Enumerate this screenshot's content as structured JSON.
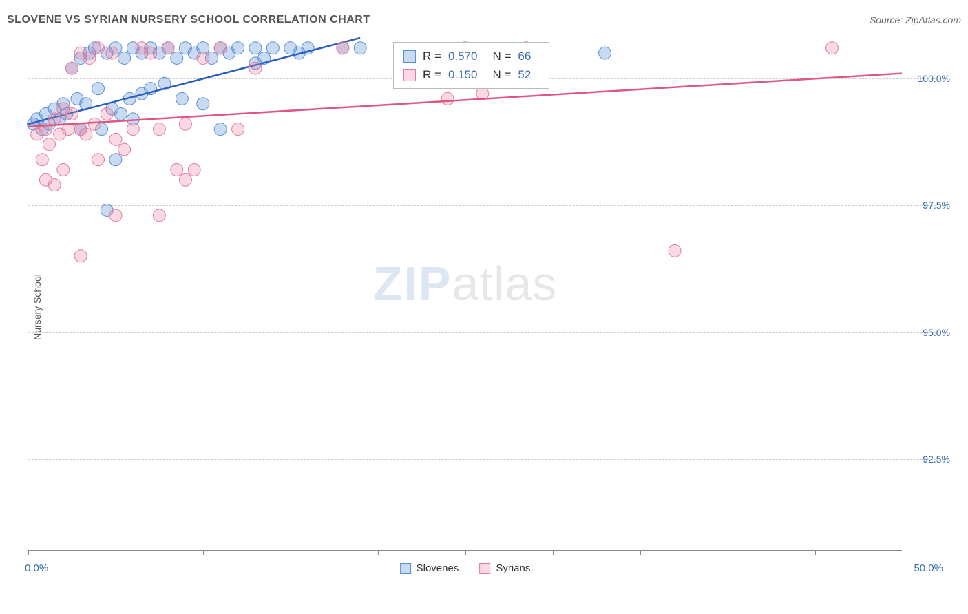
{
  "header": {
    "title": "SLOVENE VS SYRIAN NURSERY SCHOOL CORRELATION CHART",
    "source": "Source: ZipAtlas.com"
  },
  "chart": {
    "type": "scatter",
    "ylabel": "Nursery School",
    "xlim": [
      0.0,
      50.0
    ],
    "ylim": [
      90.7,
      100.8
    ],
    "xaxis_left_label": "0.0%",
    "xaxis_right_label": "50.0%",
    "xtick_positions": [
      0,
      5,
      10,
      15,
      20,
      25,
      30,
      35,
      40,
      45,
      50
    ],
    "yticks": [
      {
        "v": 100.0,
        "label": "100.0%"
      },
      {
        "v": 97.5,
        "label": "97.5%"
      },
      {
        "v": 95.0,
        "label": "95.0%"
      },
      {
        "v": 92.5,
        "label": "92.5%"
      }
    ],
    "grid_color": "#cccccc",
    "background_color": "#ffffff",
    "axis_color": "#888888",
    "tick_label_color": "#3b6db0",
    "text_color": "#555555",
    "watermark": {
      "zip": "ZIP",
      "atlas": "atlas"
    },
    "marker_radius": 9,
    "marker_opacity": 0.45,
    "line_width": 2.5,
    "series": [
      {
        "name": "Slovenes",
        "color_fill": "rgba(100,150,220,0.35)",
        "color_stroke": "#5a8fd0",
        "line_color": "#2a5fbf",
        "R": "0.570",
        "N": "66",
        "trend": {
          "x1": 0.0,
          "y1": 99.1,
          "x2": 19.0,
          "y2": 100.8
        },
        "points": [
          [
            0.3,
            99.1
          ],
          [
            0.5,
            99.2
          ],
          [
            0.8,
            99.0
          ],
          [
            1.0,
            99.3
          ],
          [
            1.2,
            99.1
          ],
          [
            1.5,
            99.4
          ],
          [
            1.8,
            99.2
          ],
          [
            2.0,
            99.5
          ],
          [
            2.2,
            99.3
          ],
          [
            2.5,
            100.2
          ],
          [
            2.8,
            99.6
          ],
          [
            3.0,
            100.4
          ],
          [
            3.0,
            99.0
          ],
          [
            3.3,
            99.5
          ],
          [
            3.5,
            100.5
          ],
          [
            3.8,
            100.6
          ],
          [
            4.0,
            99.8
          ],
          [
            4.2,
            99.0
          ],
          [
            4.5,
            100.5
          ],
          [
            4.5,
            97.4
          ],
          [
            4.8,
            99.4
          ],
          [
            5.0,
            100.6
          ],
          [
            5.0,
            98.4
          ],
          [
            5.3,
            99.3
          ],
          [
            5.5,
            100.4
          ],
          [
            5.8,
            99.6
          ],
          [
            6.0,
            100.6
          ],
          [
            6.0,
            99.2
          ],
          [
            6.5,
            100.5
          ],
          [
            6.5,
            99.7
          ],
          [
            7.0,
            100.6
          ],
          [
            7.0,
            99.8
          ],
          [
            7.5,
            100.5
          ],
          [
            7.8,
            99.9
          ],
          [
            8.0,
            100.6
          ],
          [
            8.5,
            100.4
          ],
          [
            8.8,
            99.6
          ],
          [
            9.0,
            100.6
          ],
          [
            9.5,
            100.5
          ],
          [
            10.0,
            100.6
          ],
          [
            10.0,
            99.5
          ],
          [
            10.5,
            100.4
          ],
          [
            11.0,
            100.6
          ],
          [
            11.0,
            99.0
          ],
          [
            11.5,
            100.5
          ],
          [
            12.0,
            100.6
          ],
          [
            13.0,
            100.6
          ],
          [
            13.0,
            100.3
          ],
          [
            13.5,
            100.4
          ],
          [
            14.0,
            100.6
          ],
          [
            15.0,
            100.6
          ],
          [
            15.5,
            100.5
          ],
          [
            16.0,
            100.6
          ],
          [
            18.0,
            100.6
          ],
          [
            19.0,
            100.6
          ],
          [
            33.0,
            100.5
          ]
        ]
      },
      {
        "name": "Syrians",
        "color_fill": "rgba(240,130,160,0.30)",
        "color_stroke": "#e07da0",
        "line_color": "#e0567f",
        "R": "0.150",
        "N": "52",
        "trend": {
          "x1": 0.0,
          "y1": 99.05,
          "x2": 50.0,
          "y2": 100.1
        },
        "points": [
          [
            0.5,
            98.9
          ],
          [
            0.8,
            98.4
          ],
          [
            1.0,
            99.0
          ],
          [
            1.0,
            98.0
          ],
          [
            1.2,
            98.7
          ],
          [
            1.5,
            99.2
          ],
          [
            1.5,
            97.9
          ],
          [
            1.8,
            98.9
          ],
          [
            2.0,
            99.4
          ],
          [
            2.0,
            98.2
          ],
          [
            2.3,
            99.0
          ],
          [
            2.5,
            100.2
          ],
          [
            2.5,
            99.3
          ],
          [
            3.0,
            100.5
          ],
          [
            3.0,
            99.0
          ],
          [
            3.0,
            96.5
          ],
          [
            3.3,
            98.9
          ],
          [
            3.5,
            100.4
          ],
          [
            3.8,
            99.1
          ],
          [
            4.0,
            100.6
          ],
          [
            4.0,
            98.4
          ],
          [
            4.5,
            99.3
          ],
          [
            4.8,
            100.5
          ],
          [
            5.0,
            98.8
          ],
          [
            5.0,
            97.3
          ],
          [
            5.5,
            98.6
          ],
          [
            6.0,
            99.0
          ],
          [
            6.5,
            100.6
          ],
          [
            7.0,
            100.5
          ],
          [
            7.5,
            99.0
          ],
          [
            7.5,
            97.3
          ],
          [
            8.0,
            100.6
          ],
          [
            8.5,
            98.2
          ],
          [
            9.0,
            99.1
          ],
          [
            9.0,
            98.0
          ],
          [
            9.5,
            98.2
          ],
          [
            10.0,
            100.4
          ],
          [
            11.0,
            100.6
          ],
          [
            12.0,
            99.0
          ],
          [
            13.0,
            100.2
          ],
          [
            18.0,
            100.6
          ],
          [
            22.0,
            100.4
          ],
          [
            24.0,
            99.6
          ],
          [
            25.0,
            100.6
          ],
          [
            26.0,
            99.7
          ],
          [
            27.0,
            100.5
          ],
          [
            28.5,
            100.6
          ],
          [
            37.0,
            96.6
          ],
          [
            46.0,
            100.6
          ]
        ]
      }
    ]
  },
  "legend": {
    "series1_label": "Slovenes",
    "series2_label": "Syrians"
  },
  "stats_box": {
    "r_label": "R =",
    "n_label": "N ="
  }
}
